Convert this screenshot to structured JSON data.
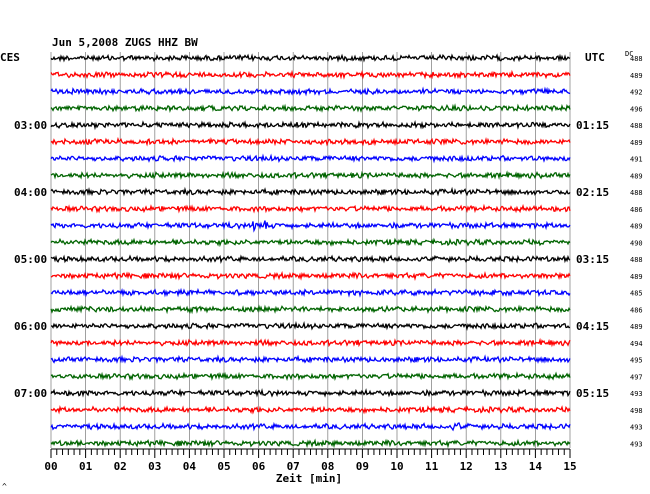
{
  "chart_data": {
    "type": "line",
    "title": "Jun 5,2008   ZUGS HHZ BW",
    "left_label": "CES",
    "right_label": "UTC",
    "dc_label": "DC",
    "xlabel": "Zeit [min]",
    "xlim": [
      0,
      15
    ],
    "x_ticks": [
      "00",
      "01",
      "02",
      "03",
      "04",
      "05",
      "06",
      "07",
      "08",
      "09",
      "10",
      "11",
      "12",
      "13",
      "14",
      "15"
    ],
    "grid": true,
    "colors": [
      "#000000",
      "#ff0000",
      "#0000ff",
      "#006400"
    ],
    "left_hour_labels": [
      "03:00",
      "04:00",
      "05:00",
      "06:00",
      "07:00"
    ],
    "right_hour_labels": [
      "01:15",
      "02:15",
      "03:15",
      "04:15",
      "05:15"
    ],
    "dc_values": [
      "488",
      "489",
      "492",
      "496",
      "488",
      "489",
      "491",
      "489",
      "488",
      "486",
      "489",
      "490",
      "488",
      "489",
      "485",
      "486",
      "489",
      "494",
      "495",
      "497",
      "493",
      "498",
      "493",
      "493"
    ],
    "footer_mark": "^"
  }
}
